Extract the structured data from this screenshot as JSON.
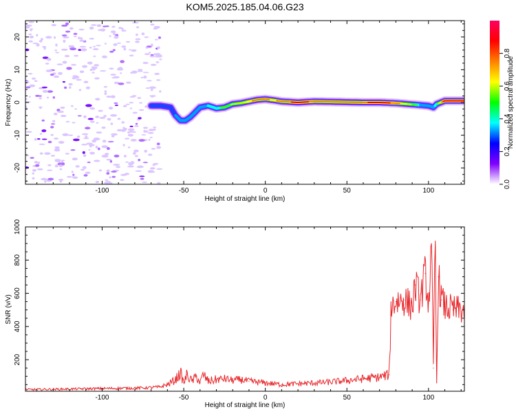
{
  "title": "KOM5.2025.185.04.06.G23",
  "chart_data": [
    {
      "type": "heatmap",
      "xlabel": "Height of straight line (km)",
      "ylabel": "Frequency (Hz)",
      "xlim": [
        -147,
        122
      ],
      "ylim": [
        -25,
        25
      ],
      "x_ticks": [
        -100,
        -50,
        0,
        50,
        100
      ],
      "y_ticks": [
        -20,
        -10,
        0,
        10,
        20
      ],
      "colorbar": {
        "label": "Normalized spectral amplitude",
        "range": [
          0,
          1
        ],
        "ticks": [
          "0.0",
          "0.2",
          "0.4",
          "0.6",
          "0.8"
        ],
        "colors": [
          "#f0dcff",
          "#8000ff",
          "#0000ff",
          "#00a0ff",
          "#00ffff",
          "#00ff60",
          "#40ff00",
          "#c0ff00",
          "#ffff00",
          "#ff8000",
          "#ff0000",
          "#ff0080"
        ]
      },
      "noise_region_x": [
        -147,
        -64
      ],
      "ridge": {
        "x": [
          -70,
          -64,
          -58,
          -55,
          -52,
          -49,
          -46,
          -43,
          -40,
          -35,
          -30,
          -25,
          -20,
          -15,
          -10,
          -5,
          0,
          5,
          10,
          20,
          30,
          40,
          50,
          60,
          70,
          80,
          90,
          95,
          100,
          103,
          105,
          110,
          122
        ],
        "y": [
          -1,
          -1,
          -1.5,
          -4,
          -5.5,
          -5.5,
          -4.5,
          -3,
          -1.5,
          -1,
          -1.8,
          -1.5,
          -0.5,
          -0.2,
          0.3,
          0.8,
          1,
          0.7,
          0.3,
          0,
          0.3,
          0.2,
          0.1,
          0,
          0,
          -0.2,
          -0.6,
          -0.8,
          -1,
          -1.5,
          -0.5,
          0.5,
          0.5
        ],
        "amplitude": [
          0.2,
          0.2,
          0.25,
          0.3,
          0.35,
          0.35,
          0.3,
          0.3,
          0.35,
          0.4,
          0.45,
          0.55,
          0.6,
          0.65,
          0.75,
          0.8,
          0.8,
          0.75,
          0.8,
          0.9,
          0.85,
          0.8,
          0.8,
          0.85,
          0.9,
          0.85,
          0.6,
          0.4,
          0.35,
          0.3,
          0.45,
          0.95,
          0.95
        ]
      }
    },
    {
      "type": "line",
      "xlabel": "Height of straight line (km)",
      "ylabel": "SNR (v/v)",
      "xlim": [
        -147,
        122
      ],
      "ylim": [
        10,
        1000
      ],
      "x_ticks": [
        -100,
        -50,
        0,
        50,
        100
      ],
      "y_ticks": [
        200,
        400,
        600,
        800,
        1000
      ],
      "line_color": "#e8262a",
      "series": [
        {
          "x": [
            -147,
            -130,
            -110,
            -90,
            -75,
            -65,
            -60,
            -55,
            -52,
            -50,
            -48,
            -45,
            -42,
            -40,
            -38,
            -35,
            -30,
            -25,
            -20,
            -15,
            -10,
            -5,
            0,
            5,
            10,
            20,
            30,
            40,
            50,
            60,
            70,
            76,
            77,
            80,
            85,
            90,
            92,
            95,
            98,
            100,
            102,
            103,
            104,
            105,
            106,
            108,
            110,
            115,
            122
          ],
          "y": [
            20,
            22,
            25,
            28,
            30,
            35,
            50,
            80,
            120,
            60,
            110,
            70,
            100,
            60,
            110,
            70,
            80,
            85,
            75,
            80,
            70,
            65,
            60,
            55,
            50,
            55,
            60,
            65,
            75,
            85,
            95,
            110,
            520,
            550,
            560,
            520,
            650,
            560,
            720,
            540,
            850,
            150,
            1000,
            60,
            700,
            560,
            520,
            500,
            500
          ]
        }
      ]
    }
  ]
}
